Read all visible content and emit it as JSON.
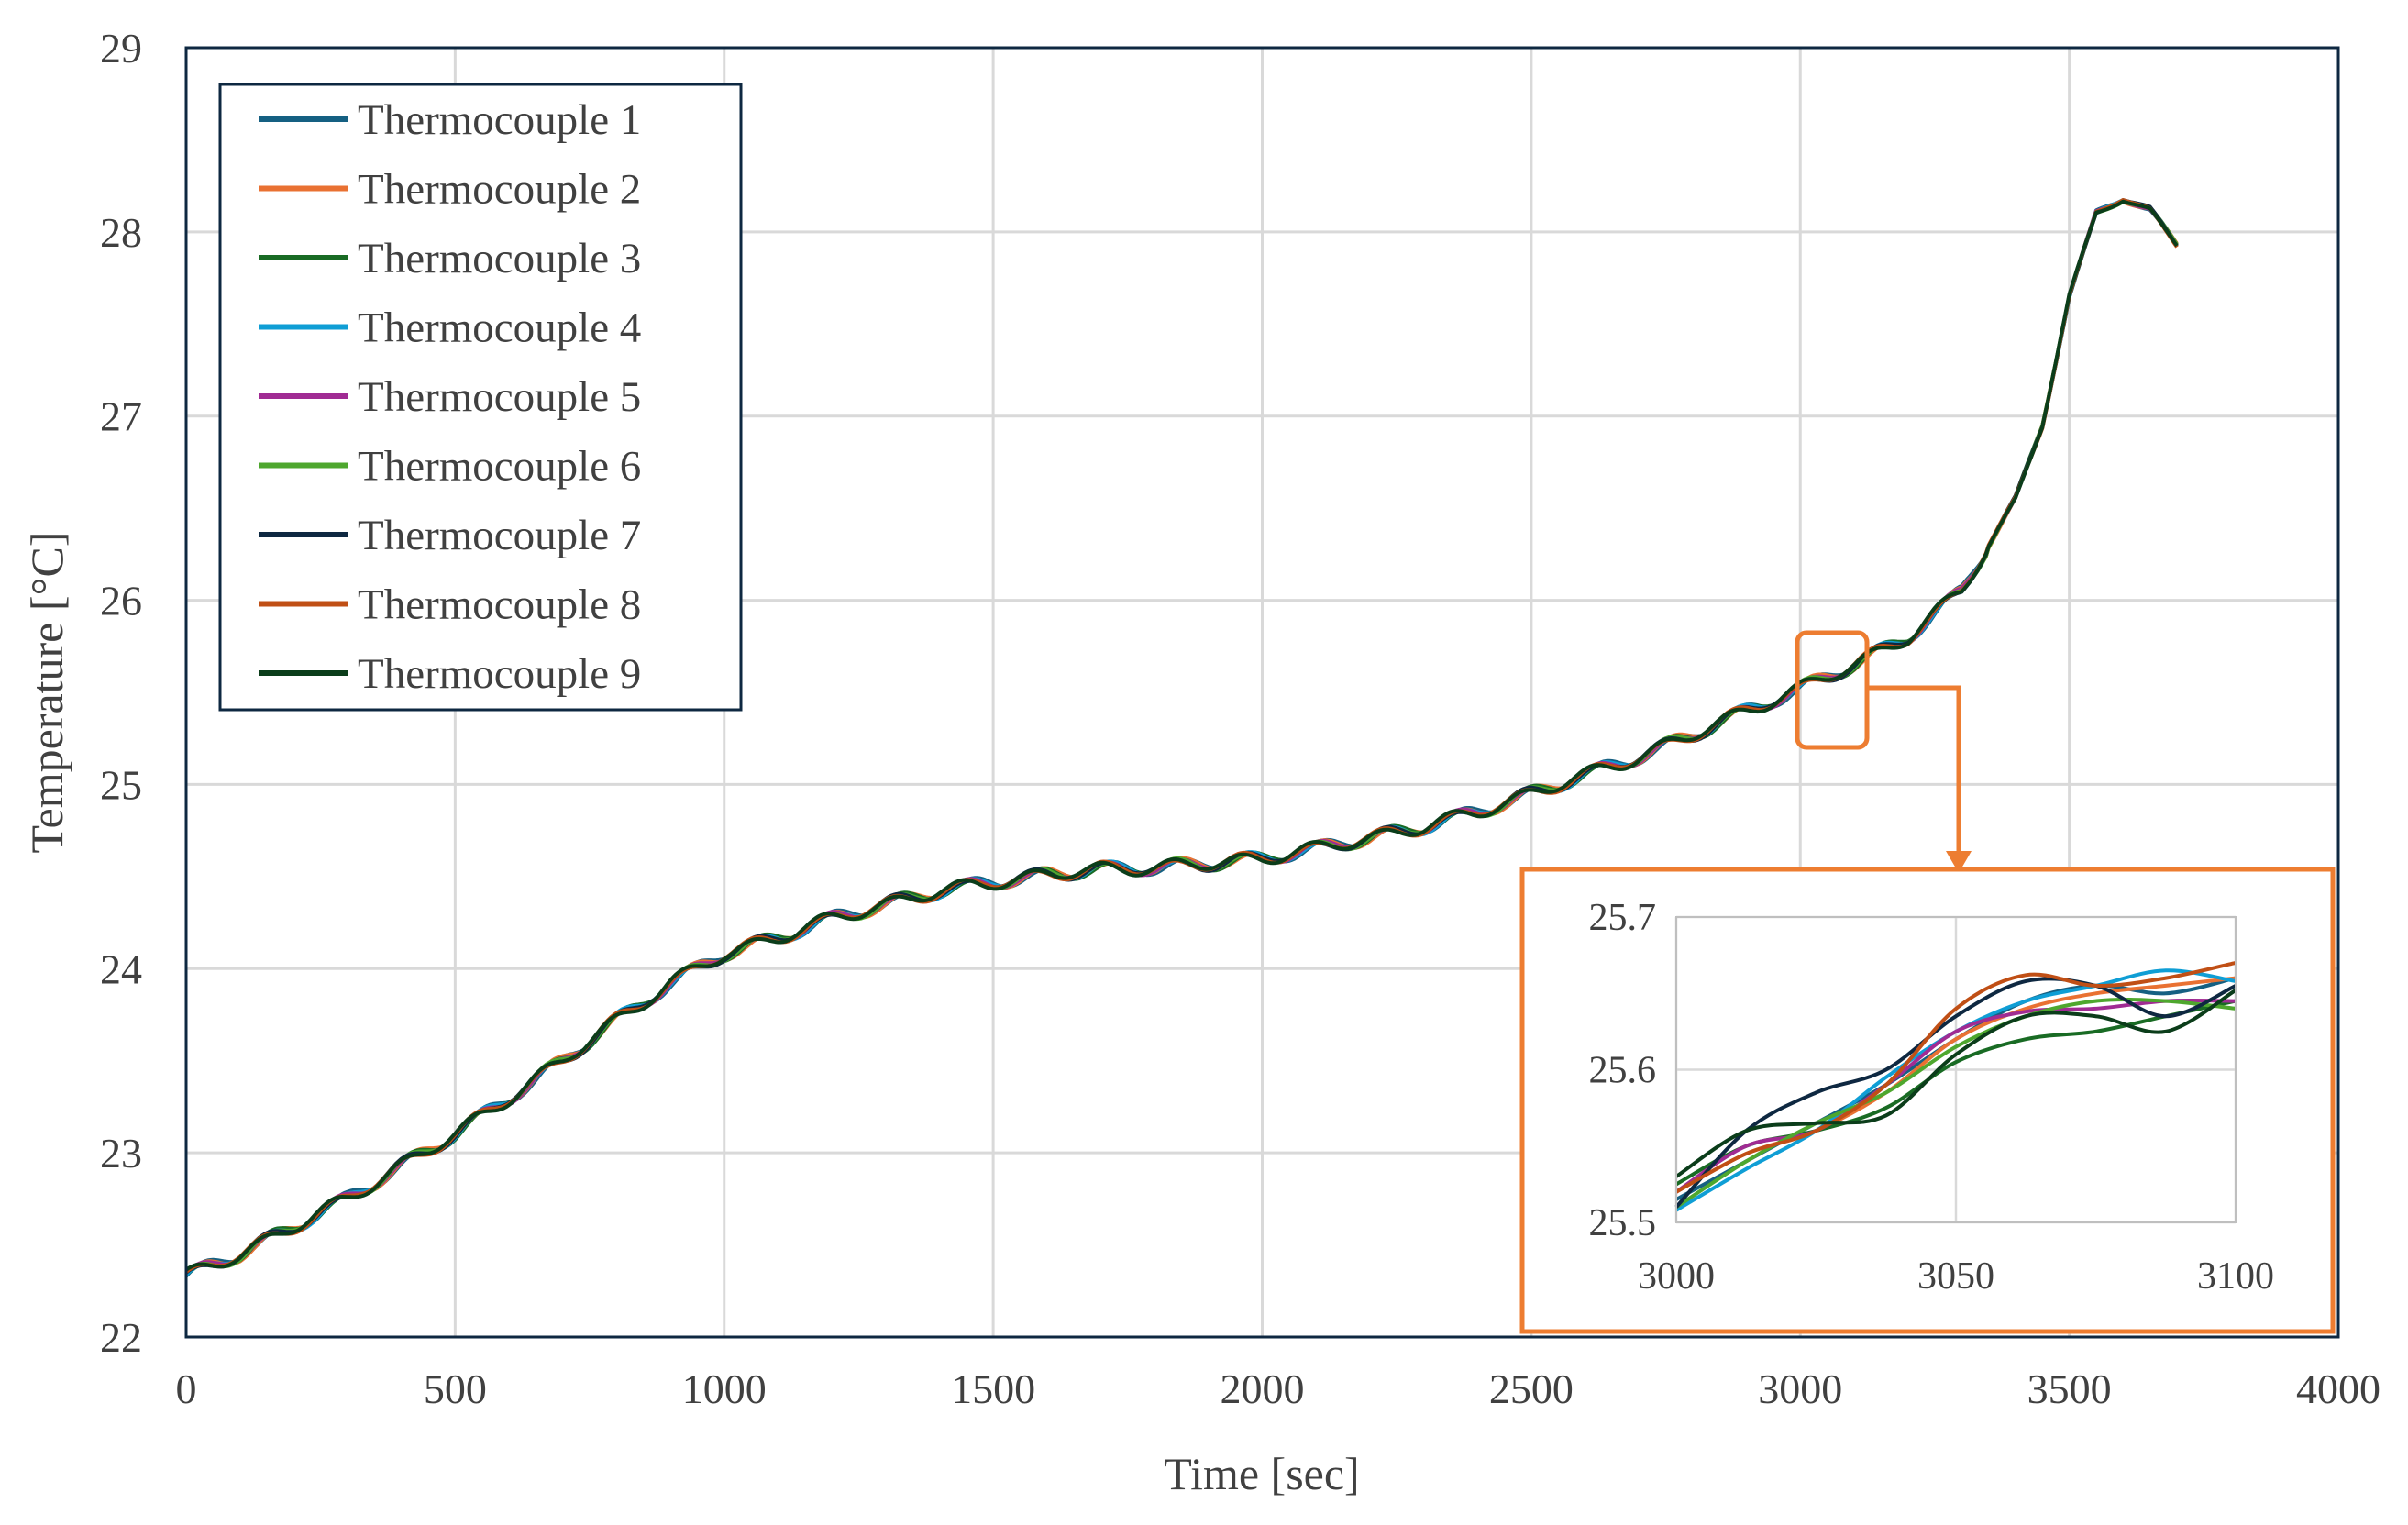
{
  "chart_data": {
    "type": "line",
    "xlabel": "Time [sec]",
    "ylabel": "Temperature [°C]",
    "xlim": [
      0,
      4000
    ],
    "ylim": [
      22,
      29
    ],
    "xticks": [
      "0",
      "500",
      "1000",
      "1500",
      "2000",
      "2500",
      "3000",
      "3500",
      "4000"
    ],
    "yticks": [
      "22",
      "23",
      "24",
      "25",
      "26",
      "27",
      "28",
      "29"
    ],
    "grid": true,
    "legend_position": "top-left",
    "series_names": [
      "Thermocouple 1",
      "Thermocouple 2",
      "Thermocouple 3",
      "Thermocouple 4",
      "Thermocouple 5",
      "Thermocouple 6",
      "Thermocouple 7",
      "Thermocouple 8",
      "Thermocouple 9"
    ],
    "series_colors": [
      "#156082",
      "#E97132",
      "#196B24",
      "#0F9ED5",
      "#A02B93",
      "#4EA72E",
      "#0E2841",
      "#C04F15",
      "#0B3D1A"
    ],
    "trend": {
      "x": [
        0,
        100,
        200,
        300,
        400,
        500,
        600,
        700,
        800,
        900,
        1000,
        1100,
        1200,
        1300,
        1400,
        1500,
        1600,
        1700,
        1800,
        1900,
        2000,
        2100,
        2200,
        2300,
        2400,
        2500,
        2600,
        2700,
        2800,
        2900,
        3000,
        3100,
        3200,
        3300,
        3350,
        3400,
        3450,
        3500,
        3550,
        3600,
        3650,
        3700
      ],
      "y": [
        22.33,
        22.45,
        22.6,
        22.75,
        22.93,
        23.1,
        23.3,
        23.5,
        23.72,
        23.92,
        24.08,
        24.17,
        24.27,
        24.35,
        24.42,
        24.47,
        24.51,
        24.54,
        24.55,
        24.57,
        24.6,
        24.65,
        24.71,
        24.77,
        24.85,
        24.95,
        25.05,
        25.15,
        25.27,
        25.4,
        25.52,
        25.65,
        25.8,
        26.05,
        26.3,
        26.55,
        26.95,
        27.65,
        28.1,
        28.18,
        28.12,
        27.93
      ]
    },
    "inset": {
      "xlim": [
        3000,
        3100
      ],
      "ylim": [
        25.5,
        25.7
      ],
      "xticks": [
        "3000",
        "3050",
        "3100"
      ],
      "yticks": [
        "25.5",
        "25.6",
        "25.7"
      ],
      "x": [
        3000,
        3012.5,
        3025,
        3037.5,
        3050,
        3062.5,
        3075,
        3087.5,
        3100
      ],
      "series": [
        {
          "values": [
            25.515,
            25.54,
            25.565,
            25.59,
            25.62,
            25.645,
            25.655,
            25.65,
            25.66
          ]
        },
        {
          "values": [
            25.52,
            25.545,
            25.56,
            25.585,
            25.62,
            25.64,
            25.65,
            25.655,
            25.66
          ]
        },
        {
          "values": [
            25.525,
            25.55,
            25.56,
            25.575,
            25.605,
            25.62,
            25.625,
            25.635,
            25.645
          ]
        },
        {
          "values": [
            25.508,
            25.535,
            25.56,
            25.595,
            25.625,
            25.645,
            25.655,
            25.665,
            25.658
          ]
        },
        {
          "values": [
            25.52,
            25.55,
            25.56,
            25.59,
            25.625,
            25.638,
            25.64,
            25.645,
            25.645
          ]
        },
        {
          "values": [
            25.51,
            25.54,
            25.565,
            25.585,
            25.615,
            25.635,
            25.645,
            25.645,
            25.64
          ]
        },
        {
          "values": [
            25.51,
            25.56,
            25.585,
            25.6,
            25.635,
            25.658,
            25.655,
            25.635,
            25.655
          ]
        },
        {
          "values": [
            25.52,
            25.545,
            25.56,
            25.59,
            25.64,
            25.662,
            25.655,
            25.66,
            25.67
          ]
        },
        {
          "values": [
            25.53,
            25.56,
            25.565,
            25.57,
            25.61,
            25.635,
            25.635,
            25.625,
            25.652
          ]
        }
      ]
    }
  }
}
